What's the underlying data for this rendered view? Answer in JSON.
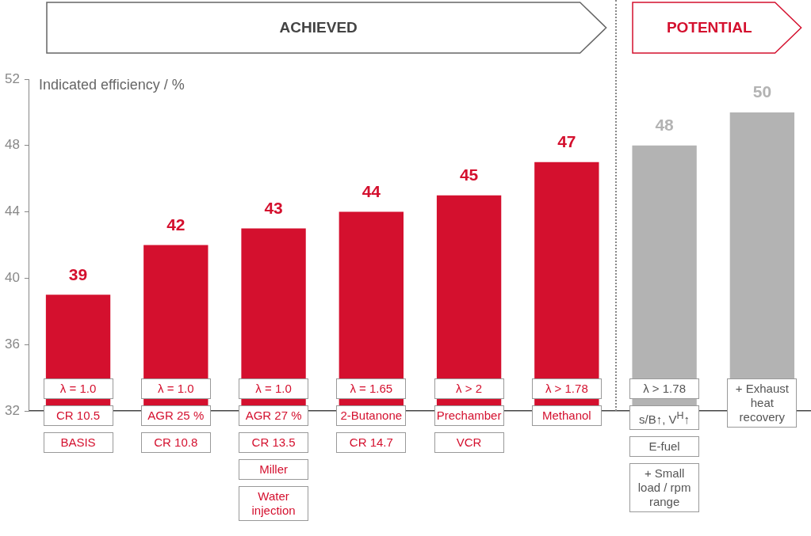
{
  "chart_data": {
    "type": "bar",
    "ylabel": "Indicated efficiency / %",
    "categories": [
      "λ = 1.0\nCR 10.5\nBASIS",
      "λ = 1.0\nAGR 25 %\nCR 10.8",
      "λ = 1.0\nAGR 27 %\nCR 13.5\nMiller\nWater injection",
      "λ = 1.65\n2-Butanone\nCR 14.7",
      "λ > 2\nPrechamber\nVCR",
      "λ > 1.78\nMethanol",
      "λ > 1.78\ns/B↑, V$^{H}$↑\nE-fuel\n+ Small load / rpm range",
      "+ Exhaust heat recovery"
    ],
    "values": [
      39,
      42,
      43,
      44,
      45,
      47,
      48,
      50
    ],
    "colors": [
      "#d4102e",
      "#d4102e",
      "#d4102e",
      "#d4102e",
      "#d4102e",
      "#d4102e",
      "#b3b3b3",
      "#b3b3b3"
    ],
    "ylim": [
      32,
      52
    ],
    "yticks": [
      32,
      36,
      40,
      44,
      48,
      52
    ],
    "data_labels": true,
    "legend": false,
    "grid": false,
    "annotations": [
      "ACHIEVED",
      "POTENTIAL"
    ]
  }
}
